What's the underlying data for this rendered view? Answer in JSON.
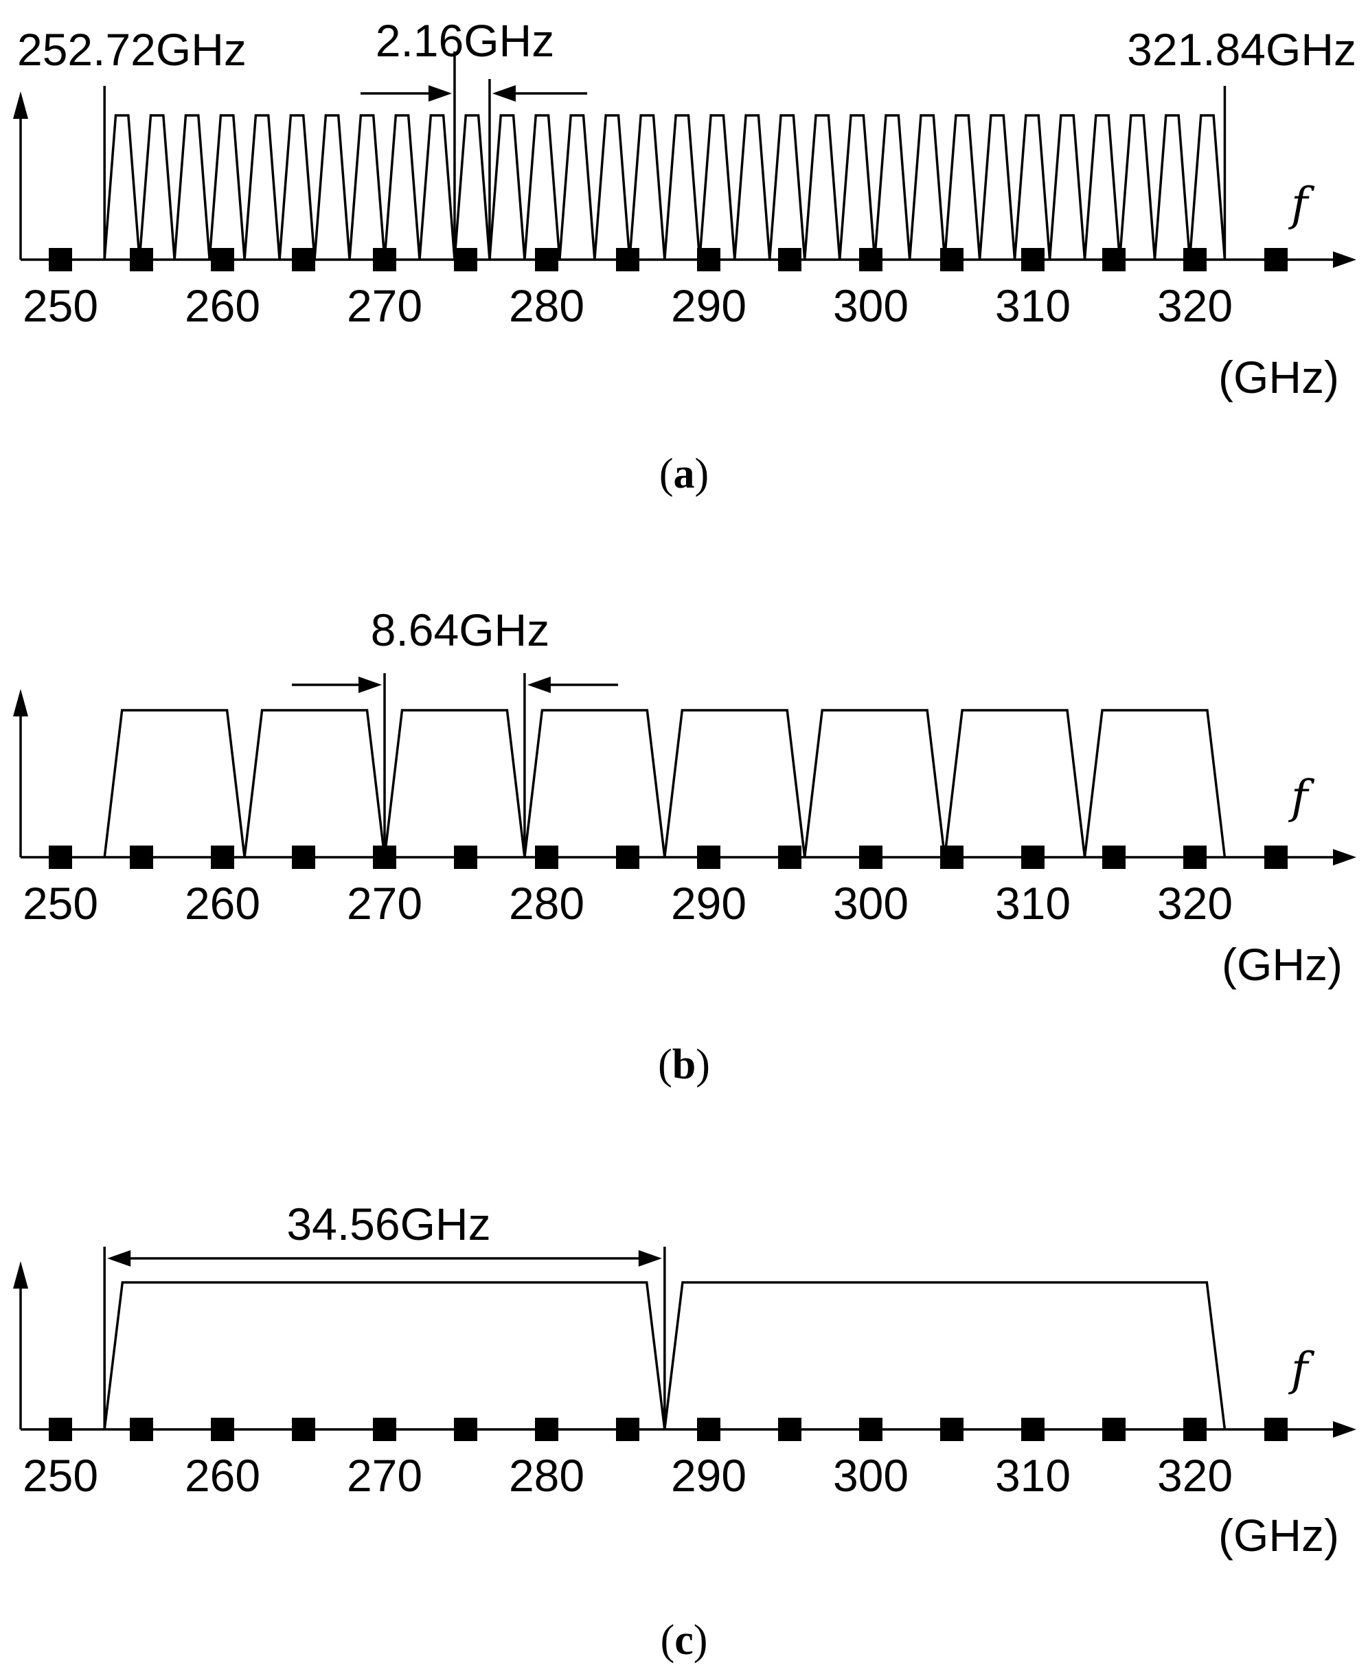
{
  "colors": {
    "ink": "#000000",
    "background": "#ffffff"
  },
  "axis": {
    "ticks": [
      "250",
      "260",
      "270",
      "280",
      "290",
      "300",
      "310",
      "320"
    ],
    "unit": "(GHz)",
    "symbol": "f",
    "range": [
      250,
      325
    ]
  },
  "panels": [
    {
      "caption_letter": "a",
      "channel_bandwidth_ghz": 2.16,
      "channel_count": 32,
      "band_start_ghz": 252.72,
      "band_end_ghz": 321.84,
      "labels": {
        "start": "252.72GHz",
        "end": "321.84GHz",
        "width": "2.16GHz"
      }
    },
    {
      "caption_letter": "b",
      "channel_bandwidth_ghz": 8.64,
      "channel_count": 8,
      "band_start_ghz": 252.72,
      "band_end_ghz": 321.84,
      "labels": {
        "width": "8.64GHz"
      }
    },
    {
      "caption_letter": "c",
      "channel_bandwidth_ghz": 34.56,
      "channel_count": 2,
      "band_start_ghz": 252.72,
      "band_end_ghz": 321.84,
      "labels": {
        "width": "34.56GHz"
      }
    }
  ]
}
